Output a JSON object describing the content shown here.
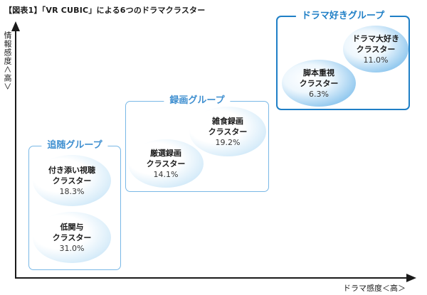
{
  "title": "【図表1】「VR CUBIC」による6つのドラマクラスター",
  "axes": {
    "y_label": "情報感度＜高＞",
    "x_label": "ドラマ感度＜高＞"
  },
  "groups": [
    {
      "label": "追随グループ",
      "clusters": [
        {
          "name": "付き添い視聴",
          "type": "クラスター",
          "share": "18.3%"
        },
        {
          "name": "低関与",
          "type": "クラスター",
          "share": "31.0%"
        }
      ]
    },
    {
      "label": "録画グループ",
      "clusters": [
        {
          "name": "厳選録画",
          "type": "クラスター",
          "share": "14.1%"
        },
        {
          "name": "雑食録画",
          "type": "クラスター",
          "share": "19.2%"
        }
      ]
    },
    {
      "label": "ドラマ好きグループ",
      "clusters": [
        {
          "name": "脚本重視",
          "type": "クラスター",
          "share": "6.3%"
        },
        {
          "name": "ドラマ大好き",
          "type": "クラスター",
          "share": "11.0%"
        }
      ]
    }
  ],
  "colors": {
    "group_border_light": "#79b8e6",
    "group_border_strong": "#1f7fc6",
    "group_label": "#3f8fd0",
    "axis": "#1a1a1a"
  }
}
